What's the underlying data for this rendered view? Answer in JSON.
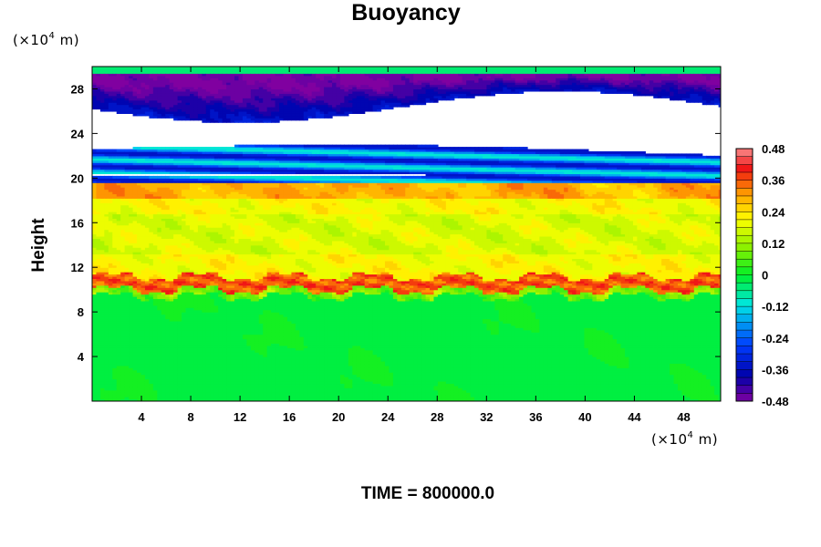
{
  "chart_data": {
    "type": "heatmap",
    "title": "Buoyancy",
    "ylabel": "Height",
    "y_unit": {
      "prefix": "(×10",
      "exp": "4",
      "suffix": " m)"
    },
    "x_unit": {
      "prefix": "(×10",
      "exp": "4",
      "suffix": " m)"
    },
    "xlim": [
      0,
      51
    ],
    "ylim": [
      0,
      30
    ],
    "x_ticks": [
      4,
      8,
      12,
      16,
      20,
      24,
      28,
      32,
      36,
      40,
      44,
      48
    ],
    "y_ticks": [
      4,
      8,
      12,
      16,
      20,
      24,
      28
    ],
    "colorbar": {
      "min": -0.48,
      "max": 0.48,
      "tick_values": [
        0.48,
        0.36,
        0.24,
        0.12,
        0,
        -0.12,
        -0.24,
        -0.36,
        -0.48
      ],
      "tick_labels": [
        "0.48",
        "0.36",
        "0.24",
        "0.12",
        "0",
        "-0.12",
        "-0.24",
        "-0.36",
        "-0.48"
      ],
      "levels": 32,
      "colormap": "rainbow (purple → blue → cyan → green → yellow → orange → red → pink)"
    },
    "field_summary": [
      {
        "height_range": [
          0,
          9.5
        ],
        "value": 0.0,
        "note": "near-neutral"
      },
      {
        "height_range": [
          9.5,
          11
        ],
        "value": 0.36,
        "note": "strong positive band"
      },
      {
        "height_range": [
          11,
          19.5
        ],
        "value": 0.22,
        "note": "positive (yellow-orange)"
      },
      {
        "height_range": [
          19.5,
          22.5
        ],
        "value": -0.3,
        "note": "negative band with thin white gaps"
      },
      {
        "height_range": [
          22.5,
          26.5
        ],
        "value": null,
        "note": "white / outside color range"
      },
      {
        "height_range": [
          26.5,
          30
        ],
        "value": -0.4,
        "note": "strong negative top layer"
      }
    ]
  },
  "footer": {
    "label": "TIME = 800000.0"
  }
}
